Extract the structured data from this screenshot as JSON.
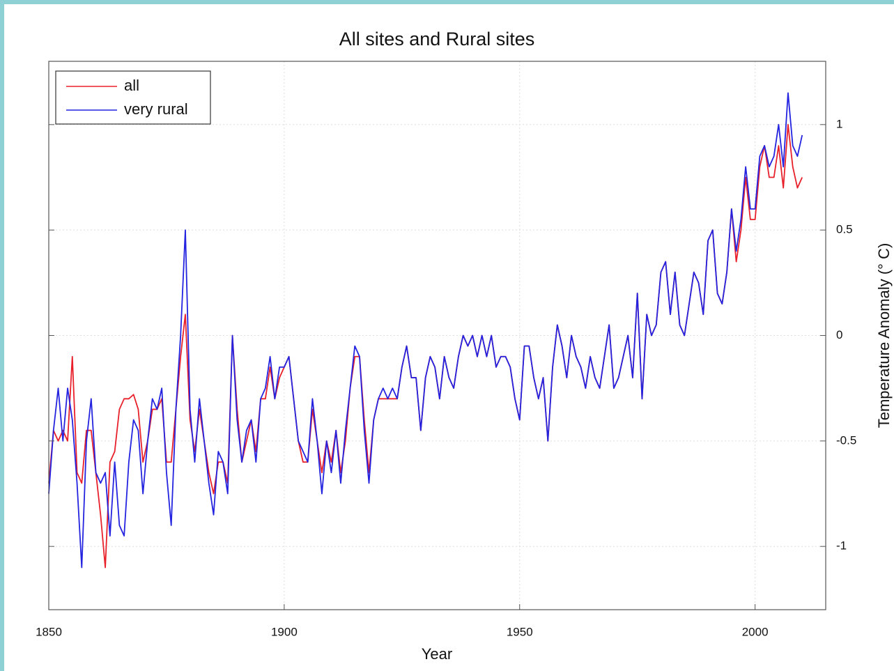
{
  "chart_data": {
    "type": "line",
    "title": "All sites and Rural sites",
    "x_label": "Year",
    "y_label": "Temperature Anomaly (° C)",
    "x": [
      1850,
      1851,
      1852,
      1853,
      1854,
      1855,
      1856,
      1857,
      1858,
      1859,
      1860,
      1861,
      1862,
      1863,
      1864,
      1865,
      1866,
      1867,
      1868,
      1869,
      1870,
      1871,
      1872,
      1873,
      1874,
      1875,
      1876,
      1877,
      1878,
      1879,
      1880,
      1881,
      1882,
      1883,
      1884,
      1885,
      1886,
      1887,
      1888,
      1889,
      1890,
      1891,
      1892,
      1893,
      1894,
      1895,
      1896,
      1897,
      1898,
      1899,
      1900,
      1901,
      1902,
      1903,
      1904,
      1905,
      1906,
      1907,
      1908,
      1909,
      1910,
      1911,
      1912,
      1913,
      1914,
      1915,
      1916,
      1917,
      1918,
      1919,
      1920,
      1921,
      1922,
      1923,
      1924,
      1925,
      1926,
      1927,
      1928,
      1929,
      1930,
      1931,
      1932,
      1933,
      1934,
      1935,
      1936,
      1937,
      1938,
      1939,
      1940,
      1941,
      1942,
      1943,
      1944,
      1945,
      1946,
      1947,
      1948,
      1949,
      1950,
      1951,
      1952,
      1953,
      1954,
      1955,
      1956,
      1957,
      1958,
      1959,
      1960,
      1961,
      1962,
      1963,
      1964,
      1965,
      1966,
      1967,
      1968,
      1969,
      1970,
      1971,
      1972,
      1973,
      1974,
      1975,
      1976,
      1977,
      1978,
      1979,
      1980,
      1981,
      1982,
      1983,
      1984,
      1985,
      1986,
      1987,
      1988,
      1989,
      1990,
      1991,
      1992,
      1993,
      1994,
      1995,
      1996,
      1997,
      1998,
      1999,
      2000,
      2001,
      2002,
      2003,
      2004,
      2005,
      2006,
      2007,
      2008,
      2009,
      2010
    ],
    "series": [
      {
        "name": "all",
        "color": "#e8202a",
        "values": [
          -0.7,
          -0.45,
          -0.5,
          -0.45,
          -0.5,
          -0.1,
          -0.65,
          -0.7,
          -0.45,
          -0.45,
          -0.65,
          -0.85,
          -1.1,
          -0.6,
          -0.55,
          -0.35,
          -0.3,
          -0.3,
          -0.28,
          -0.35,
          -0.6,
          -0.5,
          -0.35,
          -0.35,
          -0.3,
          -0.6,
          -0.6,
          -0.35,
          -0.1,
          0.1,
          -0.4,
          -0.55,
          -0.35,
          -0.5,
          -0.65,
          -0.75,
          -0.6,
          -0.6,
          -0.7,
          0.0,
          -0.35,
          -0.6,
          -0.5,
          -0.4,
          -0.55,
          -0.3,
          -0.3,
          -0.15,
          -0.3,
          -0.2,
          -0.15,
          -0.1,
          -0.3,
          -0.5,
          -0.6,
          -0.6,
          -0.35,
          -0.5,
          -0.65,
          -0.5,
          -0.6,
          -0.45,
          -0.65,
          -0.5,
          -0.25,
          -0.1,
          -0.1,
          -0.4,
          -0.65,
          -0.4,
          -0.3,
          -0.3,
          -0.3,
          -0.3,
          -0.3,
          -0.15,
          -0.05,
          -0.2,
          -0.2,
          -0.45,
          -0.2,
          -0.1,
          -0.15,
          -0.3,
          -0.1,
          -0.2,
          -0.25,
          -0.1,
          0.0,
          -0.05,
          0.0,
          -0.1,
          0.0,
          -0.1,
          0.0,
          -0.15,
          -0.1,
          -0.1,
          -0.15,
          -0.3,
          -0.4,
          -0.05,
          -0.05,
          -0.2,
          -0.3,
          -0.2,
          -0.5,
          -0.15,
          0.05,
          -0.05,
          -0.2,
          0.0,
          -0.1,
          -0.15,
          -0.25,
          -0.1,
          -0.2,
          -0.25,
          -0.1,
          0.05,
          -0.25,
          -0.2,
          -0.1,
          0.0,
          -0.2,
          0.2,
          -0.3,
          0.1,
          0.0,
          0.05,
          0.3,
          0.35,
          0.1,
          0.3,
          0.05,
          0.0,
          0.15,
          0.3,
          0.25,
          0.1,
          0.45,
          0.5,
          0.2,
          0.15,
          0.3,
          0.6,
          0.35,
          0.5,
          0.75,
          0.55,
          0.55,
          0.8,
          0.9,
          0.75,
          0.75,
          0.9,
          0.7,
          1.0,
          0.8,
          0.7,
          0.75
        ]
      },
      {
        "name": "very rural",
        "color": "#2323e0",
        "values": [
          -0.75,
          -0.45,
          -0.25,
          -0.5,
          -0.25,
          -0.4,
          -0.7,
          -1.1,
          -0.5,
          -0.3,
          -0.65,
          -0.7,
          -0.65,
          -0.95,
          -0.6,
          -0.9,
          -0.95,
          -0.6,
          -0.4,
          -0.45,
          -0.75,
          -0.5,
          -0.3,
          -0.35,
          -0.25,
          -0.65,
          -0.9,
          -0.35,
          0.0,
          0.5,
          -0.35,
          -0.6,
          -0.3,
          -0.5,
          -0.7,
          -0.85,
          -0.55,
          -0.6,
          -0.75,
          0.0,
          -0.4,
          -0.6,
          -0.45,
          -0.4,
          -0.6,
          -0.3,
          -0.25,
          -0.1,
          -0.3,
          -0.15,
          -0.15,
          -0.1,
          -0.3,
          -0.5,
          -0.55,
          -0.6,
          -0.3,
          -0.5,
          -0.75,
          -0.5,
          -0.65,
          -0.45,
          -0.7,
          -0.45,
          -0.25,
          -0.05,
          -0.1,
          -0.45,
          -0.7,
          -0.4,
          -0.3,
          -0.25,
          -0.3,
          -0.25,
          -0.3,
          -0.15,
          -0.05,
          -0.2,
          -0.2,
          -0.45,
          -0.2,
          -0.1,
          -0.15,
          -0.3,
          -0.1,
          -0.2,
          -0.25,
          -0.1,
          0.0,
          -0.05,
          0.0,
          -0.1,
          0.0,
          -0.1,
          0.0,
          -0.15,
          -0.1,
          -0.1,
          -0.15,
          -0.3,
          -0.4,
          -0.05,
          -0.05,
          -0.2,
          -0.3,
          -0.2,
          -0.5,
          -0.15,
          0.05,
          -0.05,
          -0.2,
          0.0,
          -0.1,
          -0.15,
          -0.25,
          -0.1,
          -0.2,
          -0.25,
          -0.1,
          0.05,
          -0.25,
          -0.2,
          -0.1,
          0.0,
          -0.2,
          0.2,
          -0.3,
          0.1,
          0.0,
          0.05,
          0.3,
          0.35,
          0.1,
          0.3,
          0.05,
          0.0,
          0.15,
          0.3,
          0.25,
          0.1,
          0.45,
          0.5,
          0.2,
          0.15,
          0.3,
          0.6,
          0.4,
          0.55,
          0.8,
          0.6,
          0.6,
          0.85,
          0.9,
          0.8,
          0.85,
          1.0,
          0.8,
          1.15,
          0.9,
          0.85,
          0.95
        ]
      }
    ],
    "xlim": [
      1850,
      2015
    ],
    "ylim": [
      -1.3,
      1.3
    ],
    "xticks": [
      1850,
      1900,
      1950,
      2000
    ],
    "yticks": [
      -1,
      -0.5,
      0,
      0.5,
      1
    ],
    "grid": true,
    "y_axis_side": "right",
    "legend_position": "upper left"
  }
}
